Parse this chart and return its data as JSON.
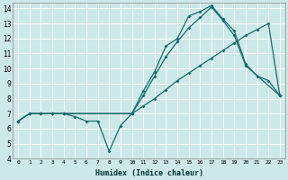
{
  "xlabel": "Humidex (Indice chaleur)",
  "xlim": [
    -0.5,
    23.5
  ],
  "ylim": [
    4,
    14.4
  ],
  "yticks": [
    4,
    5,
    6,
    7,
    8,
    9,
    10,
    11,
    12,
    13,
    14
  ],
  "xticks": [
    0,
    1,
    2,
    3,
    4,
    5,
    6,
    7,
    8,
    9,
    10,
    11,
    12,
    13,
    14,
    15,
    16,
    17,
    18,
    19,
    20,
    21,
    22,
    23
  ],
  "bg_color": "#cde8e8",
  "line_color": "#1a6b6b",
  "grid_color": "#ffffff",
  "line1_x": [
    0,
    1,
    2,
    3,
    4,
    5,
    6,
    7,
    8,
    9,
    10,
    11,
    12,
    13,
    14,
    15,
    16,
    17,
    18,
    19,
    20,
    21,
    22,
    23
  ],
  "line1_y": [
    6.5,
    7.0,
    7.0,
    7.0,
    7.0,
    6.8,
    6.5,
    6.5,
    4.5,
    6.2,
    7.0,
    8.5,
    9.8,
    11.5,
    12.0,
    13.5,
    13.8,
    14.2,
    13.3,
    12.5,
    10.3,
    9.5,
    9.2,
    8.2
  ],
  "line2_x": [
    0,
    1,
    2,
    3,
    4,
    10,
    11,
    12,
    13,
    14,
    15,
    16,
    17,
    18,
    19,
    20,
    23
  ],
  "line2_y": [
    6.5,
    7.0,
    7.0,
    7.0,
    7.0,
    7.0,
    8.2,
    9.5,
    10.8,
    11.8,
    12.7,
    13.4,
    14.1,
    13.2,
    12.2,
    10.2,
    8.2
  ],
  "line3_x": [
    0,
    1,
    2,
    3,
    4,
    10,
    11,
    12,
    13,
    14,
    15,
    16,
    17,
    18,
    19,
    20,
    21,
    22,
    23
  ],
  "line3_y": [
    6.5,
    7.0,
    7.0,
    7.0,
    7.0,
    7.0,
    7.5,
    8.0,
    8.6,
    9.2,
    9.7,
    10.2,
    10.7,
    11.2,
    11.7,
    12.2,
    12.6,
    13.0,
    8.2
  ]
}
